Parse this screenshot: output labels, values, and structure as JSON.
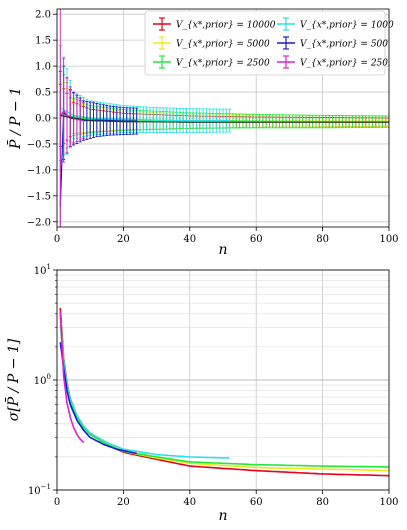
{
  "chart_data": [
    {
      "type": "line",
      "xlabel": "n",
      "ylabel": "P̄ / P − 1",
      "xlim": [
        0,
        100
      ],
      "ylim": [
        -2.1,
        2.1
      ],
      "xticks": [
        "0",
        "20",
        "40",
        "60",
        "80",
        "100"
      ],
      "yticks": [
        "−2.0",
        "−1.5",
        "−1.0",
        "−0.5",
        "0.0",
        "0.5",
        "1.0",
        "1.5",
        "2.0"
      ],
      "grid": true,
      "error_bars": true,
      "legend_position": "top-right",
      "series": [
        {
          "name": "V_{x*,prior} = 10000",
          "color": "#e8001c",
          "n": [
            1,
            5,
            10,
            20,
            40,
            60,
            80,
            100
          ],
          "mean": [
            0.05,
            0.0,
            -0.05,
            -0.07,
            -0.08,
            -0.08,
            -0.08,
            -0.08
          ],
          "err": [
            0.6,
            0.3,
            0.22,
            0.16,
            0.12,
            0.1,
            0.09,
            0.08
          ]
        },
        {
          "name": "V_{x*,prior} = 5000",
          "color": "#f0e81a",
          "n": [
            1,
            5,
            10,
            20,
            40,
            60,
            80,
            100
          ],
          "mean": [
            0.1,
            0.02,
            -0.03,
            -0.05,
            -0.06,
            -0.06,
            -0.06,
            -0.06
          ],
          "err": [
            0.7,
            0.32,
            0.24,
            0.18,
            0.14,
            0.12,
            0.11,
            0.1
          ]
        },
        {
          "name": "V_{x*,prior} = 2500",
          "color": "#22e83a",
          "n": [
            1,
            5,
            10,
            20,
            40,
            60,
            80,
            100
          ],
          "mean": [
            0.08,
            0.02,
            -0.02,
            -0.04,
            -0.05,
            -0.06,
            -0.07,
            -0.07
          ],
          "err": [
            0.9,
            0.36,
            0.26,
            0.2,
            0.15,
            0.13,
            0.12,
            0.11
          ]
        },
        {
          "name": "V_{x*,prior} = 1000",
          "color": "#2ee0e6",
          "n": [
            1,
            5,
            10,
            20,
            30,
            40,
            52
          ],
          "mean": [
            0.2,
            0.05,
            0.0,
            -0.02,
            -0.04,
            -0.05,
            -0.05
          ],
          "err": [
            1.2,
            0.45,
            0.33,
            0.26,
            0.24,
            0.23,
            0.22
          ]
        },
        {
          "name": "V_{x*,prior} = 500",
          "color": "#1a1acc",
          "n": [
            1,
            2,
            4,
            8,
            12,
            16,
            20,
            24
          ],
          "mean": [
            -1.7,
            0.1,
            0.0,
            -0.05,
            -0.04,
            -0.05,
            -0.06,
            -0.06
          ],
          "err": [
            2.6,
            0.9,
            0.55,
            0.38,
            0.32,
            0.28,
            0.26,
            0.25
          ]
        },
        {
          "name": "V_{x*,prior} = 250",
          "color": "#e020c8",
          "n": [
            1,
            2,
            3,
            4,
            5,
            6,
            7,
            8
          ],
          "mean": [
            0.0,
            0.15,
            0.05,
            0.02,
            0.0,
            -0.03,
            -0.04,
            -0.05
          ],
          "err": [
            2.2,
            1.0,
            0.72,
            0.58,
            0.48,
            0.42,
            0.38,
            0.34
          ]
        }
      ]
    },
    {
      "type": "line",
      "xlabel": "n",
      "ylabel": "σ[P̄ / P − 1]",
      "xlim": [
        0,
        100
      ],
      "ylim": [
        0.1,
        10
      ],
      "yscale": "log",
      "xticks": [
        "0",
        "20",
        "40",
        "60",
        "80",
        "100"
      ],
      "yticks": [
        {
          "base": "10",
          "exp": "1"
        },
        {
          "base": "10",
          "exp": "0"
        },
        {
          "base": "10",
          "exp": "−1"
        }
      ],
      "grid": true,
      "series": [
        {
          "color": "#e8001c",
          "x": [
            1,
            2,
            3,
            4,
            6,
            8,
            10,
            15,
            20,
            30,
            40,
            60,
            80,
            100
          ],
          "y": [
            4.5,
            1.6,
            0.95,
            0.68,
            0.47,
            0.38,
            0.32,
            0.26,
            0.22,
            0.19,
            0.165,
            0.15,
            0.14,
            0.135
          ]
        },
        {
          "color": "#f0e81a",
          "x": [
            1,
            2,
            3,
            4,
            6,
            8,
            10,
            15,
            20,
            30,
            40,
            60,
            80,
            100
          ],
          "y": [
            4.0,
            1.5,
            0.9,
            0.66,
            0.46,
            0.37,
            0.32,
            0.26,
            0.225,
            0.195,
            0.175,
            0.16,
            0.155,
            0.15
          ]
        },
        {
          "color": "#22e83a",
          "x": [
            1,
            2,
            3,
            4,
            6,
            8,
            10,
            15,
            20,
            30,
            40,
            60,
            80,
            100
          ],
          "y": [
            3.8,
            1.5,
            0.9,
            0.65,
            0.46,
            0.37,
            0.32,
            0.26,
            0.225,
            0.2,
            0.18,
            0.17,
            0.165,
            0.162
          ]
        },
        {
          "color": "#2ee0e6",
          "x": [
            1,
            2,
            3,
            4,
            6,
            8,
            10,
            15,
            20,
            30,
            40,
            52
          ],
          "y": [
            3.2,
            1.5,
            0.92,
            0.68,
            0.48,
            0.38,
            0.33,
            0.27,
            0.235,
            0.21,
            0.2,
            0.195
          ]
        },
        {
          "color": "#1a1acc",
          "x": [
            1,
            2,
            3,
            4,
            6,
            8,
            10,
            14,
            18,
            24
          ],
          "y": [
            2.2,
            1.3,
            0.8,
            0.6,
            0.43,
            0.35,
            0.3,
            0.26,
            0.235,
            0.215
          ]
        },
        {
          "color": "#e020c8",
          "x": [
            1,
            2,
            3,
            4,
            5,
            6,
            7,
            8
          ],
          "y": [
            4.2,
            1.1,
            0.62,
            0.46,
            0.37,
            0.32,
            0.29,
            0.27
          ]
        }
      ]
    }
  ]
}
